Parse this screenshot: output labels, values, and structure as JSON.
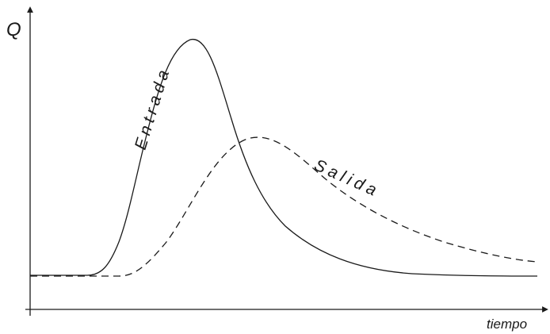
{
  "diagram": {
    "axes": {
      "y_label": "Q",
      "x_label": "tiempo"
    },
    "curves": [
      {
        "name": "Entrada",
        "style": "solid",
        "color": "#1a1a1a"
      },
      {
        "name": "Salida",
        "style": "dashed",
        "color": "#1a1a1a"
      }
    ]
  }
}
